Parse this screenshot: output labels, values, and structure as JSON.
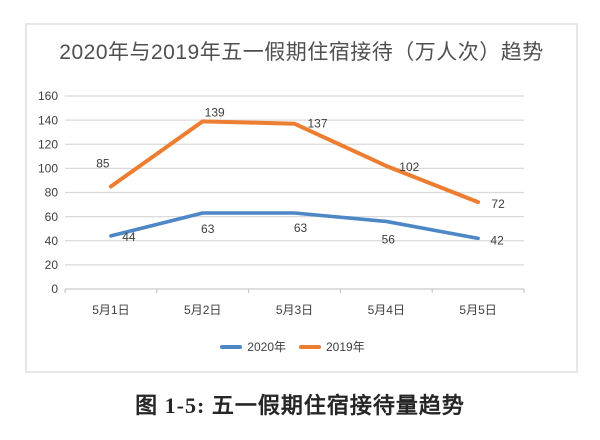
{
  "chart": {
    "title": "2020年与2019年五一假期住宿接待（万人次）趋势"
  },
  "chart_data": {
    "type": "line",
    "title": "2020年与2019年五一假期住宿接待（万人次）趋势",
    "categories": [
      "5月1日",
      "5月2日",
      "5月3日",
      "5月4日",
      "5月5日"
    ],
    "series": [
      {
        "name": "2020年",
        "color": "#4d87c6",
        "values": [
          44,
          63,
          63,
          56,
          42
        ]
      },
      {
        "name": "2019年",
        "color": "#ed7d31",
        "values": [
          85,
          139,
          137,
          102,
          72
        ]
      }
    ],
    "xlabel": "",
    "ylabel": "",
    "ylim": [
      0,
      160
    ],
    "yticks": [
      0,
      20,
      40,
      60,
      80,
      100,
      120,
      140,
      160
    ],
    "grid": true,
    "legend_position": "bottom",
    "data_labels": true
  },
  "caption": "图 1-5: 五一假期住宿接待量趋势",
  "colors": {
    "gridline": "#dadada",
    "axis": "#c9c9c9",
    "tick_text": "#404040",
    "title_text": "#4f4f4f",
    "border": "#e6e6e6",
    "background": "#ffffff"
  }
}
